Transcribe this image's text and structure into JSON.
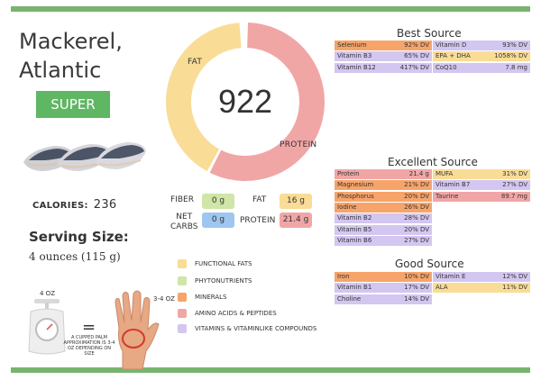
{
  "title": {
    "line1": "Mackerel,",
    "line2": "Atlantic"
  },
  "badge": "SUPER",
  "calories": {
    "label": "CALORIES:",
    "value": "236"
  },
  "serving": {
    "heading": "Serving Size:",
    "value": "4 ounces (115 g)"
  },
  "donut": {
    "score": "922",
    "fat_label": "FAT",
    "protein_label": "PROTEIN",
    "fat_fraction": 0.42,
    "protein_fraction": 0.58
  },
  "nutrients": {
    "fiber_label": "FIBER",
    "fiber_value": "0 g",
    "fat_label": "FAT",
    "fat_value": "16 g",
    "netcarbs_label1": "NET",
    "netcarbs_label2": "CARBS",
    "netcarbs_value": "0 g",
    "protein_label": "PROTEIN",
    "protein_value": "21.4 g"
  },
  "legend": [
    {
      "label": "FUNCTIONAL FATS",
      "color": "#f9dc96"
    },
    {
      "label": "PHYTONUTRIENTS",
      "color": "#cfe6a6"
    },
    {
      "label": "MINERALS",
      "color": "#f7a46a"
    },
    {
      "label": "AMINO ACIDS & PEPTIDES",
      "color": "#f1a6a6"
    },
    {
      "label": "VITAMINS & VITAMINLIKE COMPOUNDS",
      "color": "#d3c6f0"
    }
  ],
  "colors": {
    "fat": "#f9dc96",
    "protein": "#f1a6a6",
    "mineral": "#f7a46a",
    "vitamin": "#d3c6f0",
    "green": "#78b46e",
    "fiber": "#cfe6a6",
    "carbs": "#9ec6ef"
  },
  "best": {
    "title": "Best Source",
    "left": [
      {
        "name": "Selenium",
        "value": "92% DV",
        "type": "mineral"
      },
      {
        "name": "Vitamin B3",
        "value": "65% DV",
        "type": "vitamin"
      },
      {
        "name": "Vitamin B12",
        "value": "417% DV",
        "type": "vitamin"
      }
    ],
    "right": [
      {
        "name": "Vitamin D",
        "value": "93% DV",
        "type": "vitamin"
      },
      {
        "name": "EPA + DHA",
        "value": "1058% DV",
        "type": "fat"
      },
      {
        "name": "CoQ10",
        "value": "7.8 mg",
        "type": "vitamin"
      }
    ]
  },
  "excellent": {
    "title": "Excellent Source",
    "left": [
      {
        "name": "Protein",
        "value": "21.4 g",
        "type": "protein"
      },
      {
        "name": "Magnesium",
        "value": "21% DV",
        "type": "mineral"
      },
      {
        "name": "Phosphorus",
        "value": "20% DV",
        "type": "mineral"
      },
      {
        "name": "Iodine",
        "value": "26% DV",
        "type": "mineral"
      },
      {
        "name": "Vitamin B2",
        "value": "28% DV",
        "type": "vitamin"
      },
      {
        "name": "Vitamin B5",
        "value": "20% DV",
        "type": "vitamin"
      },
      {
        "name": "Vitamin B6",
        "value": "27% DV",
        "type": "vitamin"
      }
    ],
    "right": [
      {
        "name": "MUFA",
        "value": "31% DV",
        "type": "fat"
      },
      {
        "name": "Vitamin B7",
        "value": "27% DV",
        "type": "vitamin"
      },
      {
        "name": "Taurine",
        "value": "89.7 mg",
        "type": "protein"
      }
    ]
  },
  "good": {
    "title": "Good Source",
    "left": [
      {
        "name": "Iron",
        "value": "10% DV",
        "type": "mineral"
      },
      {
        "name": "Vitamin B1",
        "value": "17% DV",
        "type": "vitamin"
      },
      {
        "name": "Choline",
        "value": "14% DV",
        "type": "vitamin"
      }
    ],
    "right": [
      {
        "name": "Vitamin E",
        "value": "12% DV",
        "type": "vitamin"
      },
      {
        "name": "ALA",
        "value": "11% DV",
        "type": "fat"
      }
    ]
  },
  "portion": {
    "scale_label": "4 OZ",
    "palm_label": "3-4 OZ",
    "equals": "=",
    "palm_text": "A CUPPED PALM APPROXIMATION IS 3-4 OZ DEPENDING ON SIZE"
  }
}
